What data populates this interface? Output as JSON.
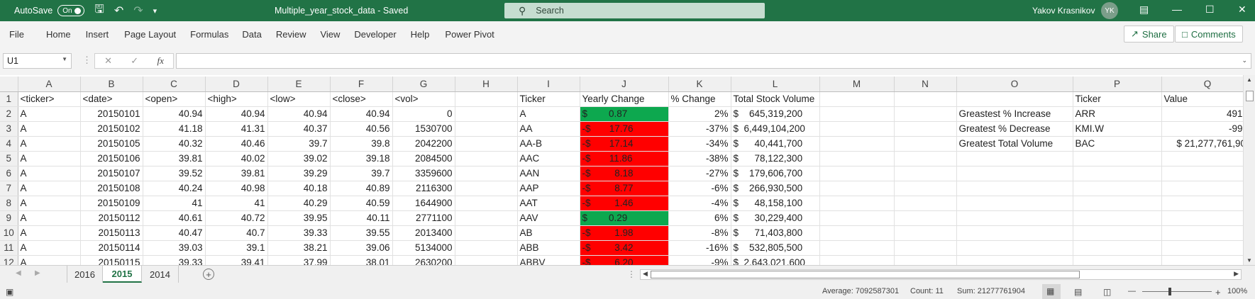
{
  "title_bar": {
    "autosave_label": "AutoSave",
    "autosave_state": "On",
    "document_name": "Multiple_year_stock_data  -  Saved",
    "search_placeholder": "Search",
    "user_name": "Yakov Krasnikov",
    "user_initials": "YK"
  },
  "menu": {
    "items": [
      "File",
      "Home",
      "Insert",
      "Page Layout",
      "Formulas",
      "Data",
      "Review",
      "View",
      "Developer",
      "Help",
      "Power Pivot"
    ],
    "share_label": "Share",
    "comments_label": "Comments"
  },
  "formula_bar": {
    "name_box": "U1",
    "formula": ""
  },
  "columns": [
    "A",
    "B",
    "C",
    "D",
    "E",
    "F",
    "G",
    "H",
    "I",
    "J",
    "K",
    "L",
    "M",
    "N",
    "O",
    "P",
    "Q"
  ],
  "row_numbers": [
    "1",
    "2",
    "3",
    "4",
    "5",
    "6",
    "7",
    "8",
    "9",
    "10",
    "11",
    "12"
  ],
  "rows": [
    [
      "<ticker>",
      "<date>",
      "<open>",
      "<high>",
      "<low>",
      "<close>",
      "<vol>",
      "",
      "Ticker",
      "Yearly Change",
      "% Change",
      "Total Stock Volume",
      "",
      "",
      "",
      "Ticker",
      "Value"
    ],
    [
      "A",
      "20150101",
      "40.94",
      "40.94",
      "40.94",
      "40.94",
      "0",
      "",
      "A",
      "$        0.87",
      "2%",
      "$    645,319,200",
      "",
      "",
      "Greastest % Increase",
      "ARR",
      "491%"
    ],
    [
      "A",
      "20150102",
      "41.18",
      "41.31",
      "40.37",
      "40.56",
      "1530700",
      "",
      "AA",
      "-$       17.76",
      "-37%",
      "$  6,449,104,200",
      "",
      "",
      "Greatest % Decrease",
      "KMI.W",
      "-99%"
    ],
    [
      "A",
      "20150105",
      "40.32",
      "40.46",
      "39.7",
      "39.8",
      "2042200",
      "",
      "AA-B",
      "-$       17.14",
      "-34%",
      "$      40,441,700",
      "",
      "",
      "Greatest Total Volume",
      "BAC",
      "$ 21,277,761,900"
    ],
    [
      "A",
      "20150106",
      "39.81",
      "40.02",
      "39.02",
      "39.18",
      "2084500",
      "",
      "AAC",
      "-$       11.86",
      "-38%",
      "$      78,122,300",
      "",
      "",
      "",
      "",
      ""
    ],
    [
      "A",
      "20150107",
      "39.52",
      "39.81",
      "39.29",
      "39.7",
      "3359600",
      "",
      "AAN",
      "-$         8.18",
      "-27%",
      "$    179,606,700",
      "",
      "",
      "",
      "",
      ""
    ],
    [
      "A",
      "20150108",
      "40.24",
      "40.98",
      "40.18",
      "40.89",
      "2116300",
      "",
      "AAP",
      "-$         8.77",
      "-6%",
      "$    266,930,500",
      "",
      "",
      "",
      "",
      ""
    ],
    [
      "A",
      "20150109",
      "41",
      "41",
      "40.29",
      "40.59",
      "1644900",
      "",
      "AAT",
      "-$         1.46",
      "-4%",
      "$      48,158,100",
      "",
      "",
      "",
      "",
      ""
    ],
    [
      "A",
      "20150112",
      "40.61",
      "40.72",
      "39.95",
      "40.11",
      "2771100",
      "",
      "AAV",
      "$        0.29",
      "6%",
      "$      30,229,400",
      "",
      "",
      "",
      "",
      ""
    ],
    [
      "A",
      "20150113",
      "40.47",
      "40.7",
      "39.33",
      "39.55",
      "2013400",
      "",
      "AB",
      "-$         1.98",
      "-8%",
      "$      71,403,800",
      "",
      "",
      "",
      "",
      ""
    ],
    [
      "A",
      "20150114",
      "39.03",
      "39.1",
      "38.21",
      "39.06",
      "5134000",
      "",
      "ABB",
      "-$         3.42",
      "-16%",
      "$    532,805,500",
      "",
      "",
      "",
      "",
      ""
    ],
    [
      "A",
      "20150115",
      "39.33",
      "39.41",
      "37.99",
      "38.01",
      "2630200",
      "",
      "ABBV",
      "-$         6.20",
      "-9%",
      "$  2,643,021,600",
      "",
      "",
      "",
      "",
      ""
    ]
  ],
  "change_status": [
    "",
    "pos",
    "neg",
    "neg",
    "neg",
    "neg",
    "neg",
    "neg",
    "pos",
    "neg",
    "neg",
    "neg"
  ],
  "colors": {
    "excel_green": "#217346",
    "positive_fill": "#0da84f",
    "negative_fill": "#ff0000"
  },
  "sheet_tabs": [
    {
      "label": "2016",
      "active": false
    },
    {
      "label": "2015",
      "active": true
    },
    {
      "label": "2014",
      "active": false
    }
  ],
  "status_bar": {
    "average": "Average: 7092587301",
    "count": "Count: 11",
    "sum": "Sum: 21277761904",
    "zoom": "100%"
  }
}
